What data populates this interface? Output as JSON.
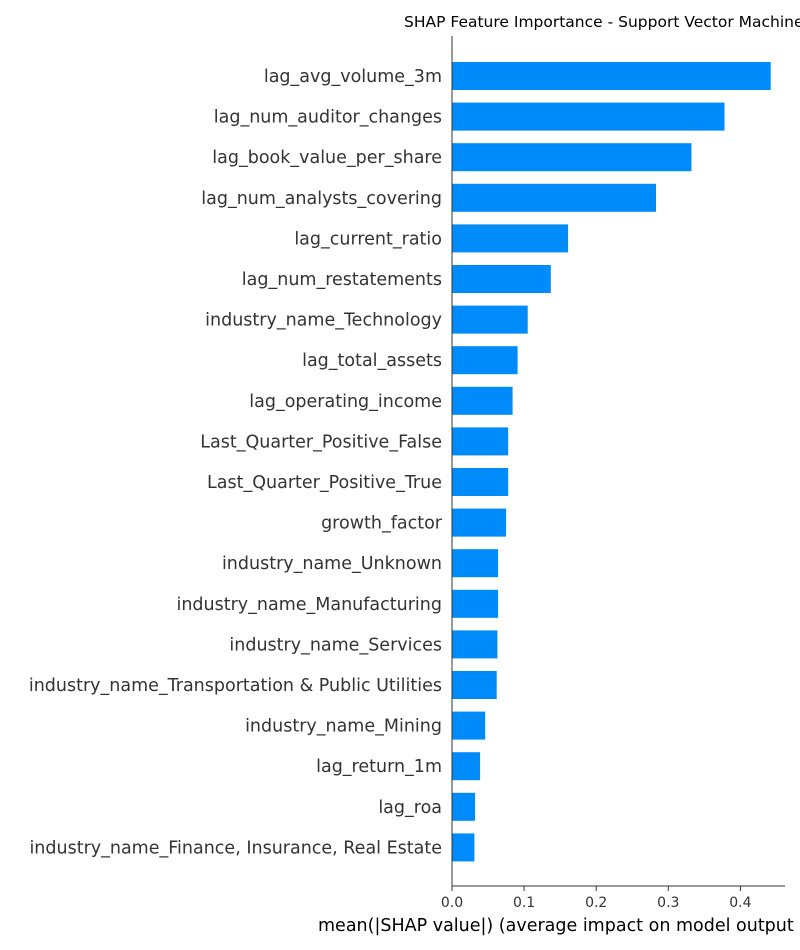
{
  "chart_data": {
    "type": "bar",
    "orientation": "horizontal",
    "title": "SHAP Feature Importance - Support Vector Machine",
    "xlabel": "mean(|SHAP value|) (average impact on model output magnitude)",
    "ylabel": "",
    "xlim": [
      0,
      0.465
    ],
    "xticks": [
      0.0,
      0.1,
      0.2,
      0.3,
      0.4
    ],
    "xtick_labels": [
      "0.0",
      "0.1",
      "0.2",
      "0.3",
      "0.4"
    ],
    "grid": false,
    "bar_color": "#008bfb",
    "categories": [
      "lag_avg_volume_3m",
      "lag_num_auditor_changes",
      "lag_book_value_per_share",
      "lag_num_analysts_covering",
      "lag_current_ratio",
      "lag_num_restatements",
      "industry_name_Technology",
      "lag_total_assets",
      "lag_operating_income",
      "Last_Quarter_Positive_False",
      "Last_Quarter_Positive_True",
      "growth_factor",
      "industry_name_Unknown",
      "industry_name_Manufacturing",
      "industry_name_Services",
      "industry_name_Transportation & Public Utilities",
      "industry_name_Mining",
      "lag_return_1m",
      "lag_roa",
      "industry_name_Finance, Insurance, Real Estate"
    ],
    "values": [
      0.442,
      0.378,
      0.332,
      0.283,
      0.161,
      0.137,
      0.105,
      0.091,
      0.084,
      0.078,
      0.078,
      0.075,
      0.064,
      0.064,
      0.063,
      0.062,
      0.046,
      0.039,
      0.032,
      0.031
    ]
  }
}
